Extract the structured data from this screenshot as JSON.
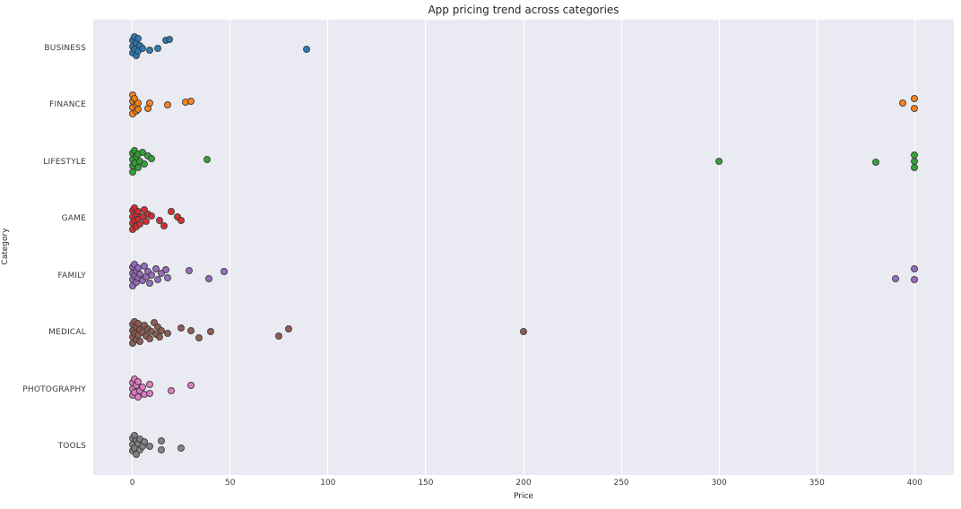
{
  "colors": {
    "figure_bg": "#ffffff",
    "plot_bg": "#eaeaf2",
    "grid_line": "#ffffff",
    "title_text": "#262626",
    "tick_text": "#3a3a3a",
    "point_edge": "#3d3d3d"
  },
  "chart_data": {
    "type": "scatter",
    "subtype": "strip-plot",
    "title": "App pricing trend across categories",
    "xlabel": "Price",
    "ylabel": "Category",
    "xlim": [
      -20,
      420
    ],
    "xticks": [
      0,
      50,
      100,
      150,
      200,
      250,
      300,
      350,
      400
    ],
    "grid": "vertical-only",
    "legend": "none",
    "categories": [
      "BUSINESS",
      "FINANCE",
      "LIFESTYLE",
      "GAME",
      "FAMILY",
      "MEDICAL",
      "PHOTOGRAPHY",
      "TOOLS"
    ],
    "series": [
      {
        "name": "BUSINESS",
        "color": "#1f77b4",
        "points": [
          [
            0,
            -9
          ],
          [
            0,
            -2
          ],
          [
            0,
            5
          ],
          [
            1,
            -13
          ],
          [
            1,
            1
          ],
          [
            2,
            -6
          ],
          [
            2,
            8
          ],
          [
            3,
            -11
          ],
          [
            3,
            3
          ],
          [
            4,
            -3
          ],
          [
            5,
            0
          ],
          [
            9,
            2
          ],
          [
            13,
            0
          ],
          [
            17,
            -9
          ],
          [
            19,
            -10
          ],
          [
            89,
            1
          ]
        ]
      },
      {
        "name": "FINANCE",
        "color": "#ff7f0e",
        "points": [
          [
            0,
            -11
          ],
          [
            0,
            -4
          ],
          [
            0,
            3
          ],
          [
            0,
            10
          ],
          [
            1,
            -7
          ],
          [
            2,
            0
          ],
          [
            2,
            7
          ],
          [
            3,
            -2
          ],
          [
            3,
            5
          ],
          [
            8,
            4
          ],
          [
            9,
            -2
          ],
          [
            18,
            0
          ],
          [
            27,
            -3
          ],
          [
            30,
            -4
          ],
          [
            394,
            -2
          ],
          [
            400,
            -7
          ],
          [
            400,
            4
          ]
        ]
      },
      {
        "name": "LIFESTYLE",
        "color": "#2ca02c",
        "points": [
          [
            0,
            -10
          ],
          [
            0,
            -3
          ],
          [
            0,
            4
          ],
          [
            0,
            11
          ],
          [
            1,
            -13
          ],
          [
            1,
            1
          ],
          [
            2,
            -6
          ],
          [
            3,
            -9
          ],
          [
            3,
            6
          ],
          [
            4,
            -1
          ],
          [
            5,
            -11
          ],
          [
            6,
            2
          ],
          [
            8,
            -7
          ],
          [
            10,
            -4
          ],
          [
            38,
            -3
          ],
          [
            300,
            -1
          ],
          [
            380,
            0
          ],
          [
            400,
            -8
          ],
          [
            400,
            -1
          ],
          [
            400,
            6
          ]
        ]
      },
      {
        "name": "GAME",
        "color": "#d62728",
        "points": [
          [
            0,
            -9
          ],
          [
            0,
            -2
          ],
          [
            0,
            5
          ],
          [
            0,
            12
          ],
          [
            1,
            -12
          ],
          [
            1,
            2
          ],
          [
            2,
            -5
          ],
          [
            2,
            9
          ],
          [
            3,
            -8
          ],
          [
            3,
            1
          ],
          [
            4,
            6
          ],
          [
            5,
            -2
          ],
          [
            6,
            -10
          ],
          [
            7,
            3
          ],
          [
            8,
            -5
          ],
          [
            10,
            -3
          ],
          [
            14,
            2
          ],
          [
            16,
            8
          ],
          [
            20,
            -8
          ],
          [
            23,
            -2
          ],
          [
            25,
            2
          ]
        ]
      },
      {
        "name": "FAMILY",
        "color": "#9467bd",
        "points": [
          [
            0,
            -10
          ],
          [
            0,
            -3
          ],
          [
            0,
            4
          ],
          [
            0,
            11
          ],
          [
            1,
            -13
          ],
          [
            1,
            0
          ],
          [
            2,
            -6
          ],
          [
            2,
            7
          ],
          [
            3,
            -9
          ],
          [
            3,
            2
          ],
          [
            4,
            -2
          ],
          [
            5,
            5
          ],
          [
            6,
            -11
          ],
          [
            7,
            1
          ],
          [
            8,
            -5
          ],
          [
            9,
            8
          ],
          [
            10,
            -1
          ],
          [
            12,
            -8
          ],
          [
            13,
            4
          ],
          [
            15,
            -3
          ],
          [
            17,
            -7
          ],
          [
            18,
            2
          ],
          [
            29,
            -6
          ],
          [
            39,
            3
          ],
          [
            47,
            -5
          ],
          [
            390,
            3
          ],
          [
            400,
            -8
          ],
          [
            400,
            4
          ]
        ]
      },
      {
        "name": "MEDICAL",
        "color": "#8c564b",
        "points": [
          [
            0,
            -9
          ],
          [
            0,
            -2
          ],
          [
            0,
            5
          ],
          [
            0,
            12
          ],
          [
            1,
            -12
          ],
          [
            1,
            1
          ],
          [
            2,
            -6
          ],
          [
            2,
            8
          ],
          [
            3,
            -10
          ],
          [
            3,
            3
          ],
          [
            4,
            -3
          ],
          [
            4,
            10
          ],
          [
            5,
            0
          ],
          [
            6,
            -8
          ],
          [
            7,
            4
          ],
          [
            8,
            -4
          ],
          [
            9,
            7
          ],
          [
            10,
            -1
          ],
          [
            11,
            -11
          ],
          [
            12,
            2
          ],
          [
            13,
            -6
          ],
          [
            14,
            5
          ],
          [
            15,
            -2
          ],
          [
            18,
            1
          ],
          [
            25,
            -5
          ],
          [
            30,
            -2
          ],
          [
            34,
            6
          ],
          [
            40,
            -1
          ],
          [
            75,
            4
          ],
          [
            80,
            -4
          ],
          [
            200,
            -1
          ]
        ]
      },
      {
        "name": "PHOTOGRAPHY",
        "color": "#e377c2",
        "points": [
          [
            0,
            -8
          ],
          [
            0,
            -1
          ],
          [
            0,
            6
          ],
          [
            1,
            -12
          ],
          [
            1,
            3
          ],
          [
            2,
            -5
          ],
          [
            3,
            -9
          ],
          [
            3,
            8
          ],
          [
            4,
            1
          ],
          [
            5,
            -3
          ],
          [
            6,
            5
          ],
          [
            9,
            -6
          ],
          [
            9,
            4
          ],
          [
            20,
            1
          ],
          [
            30,
            -5
          ]
        ]
      },
      {
        "name": "TOOLS",
        "color": "#7f7f7f",
        "points": [
          [
            0,
            -9
          ],
          [
            0,
            -2
          ],
          [
            0,
            5
          ],
          [
            1,
            -12
          ],
          [
            1,
            2
          ],
          [
            2,
            -6
          ],
          [
            2,
            9
          ],
          [
            3,
            -3
          ],
          [
            4,
            -8
          ],
          [
            4,
            4
          ],
          [
            5,
            0
          ],
          [
            6,
            -5
          ],
          [
            9,
            0
          ],
          [
            15,
            -6
          ],
          [
            15,
            4
          ],
          [
            25,
            2
          ]
        ]
      }
    ]
  }
}
